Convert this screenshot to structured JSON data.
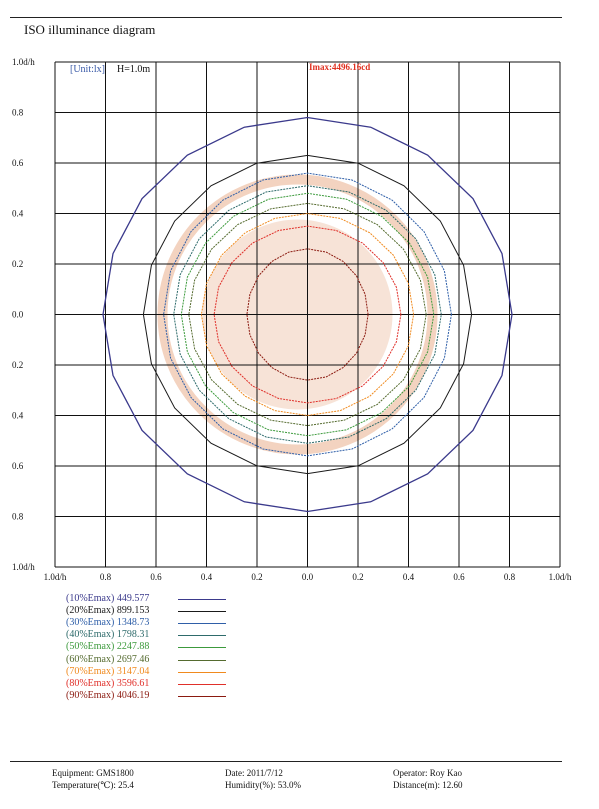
{
  "title": "ISO illuminance diagram",
  "header_left": {
    "unit": "[Unit:lx]",
    "height": "H=1.0m"
  },
  "imax": "Imax:4496.16cd",
  "colors": {
    "grid": "#111111",
    "unit": "#3b5ba8",
    "imax": "#e03020",
    "watermark": "#f0c8b0",
    "levels": [
      "#3b3a8c",
      "#1a1a1a",
      "#2f5fa8",
      "#2e6b6b",
      "#3c9a3c",
      "#556b2f",
      "#f08a1e",
      "#e0302a",
      "#8b1a10"
    ]
  },
  "chart_data": {
    "type": "contour",
    "title": "ISO illuminance diagram",
    "unit": "lx",
    "mounting_height": "H=1.0m",
    "imax": "4496.16cd",
    "x_ticks": [
      "1.0d/h",
      "0.8",
      "0.6",
      "0.4",
      "0.2",
      "0.0",
      "0.2",
      "0.4",
      "0.6",
      "0.8",
      "1.0d/h"
    ],
    "y_ticks": [
      "1.0d/h",
      "0.8",
      "0.6",
      "0.4",
      "0.2",
      "0.0",
      "0.2",
      "0.4",
      "0.6",
      "0.8",
      "1.0d/h"
    ],
    "x_range": [
      -1.0,
      1.0
    ],
    "y_range": [
      -1.0,
      1.0
    ],
    "grid": true,
    "contours": [
      {
        "label": "(10%Emax)",
        "value": "449.577",
        "radius_x": 0.81,
        "radius_y": 0.78
      },
      {
        "label": "(20%Emax)",
        "value": "899.153",
        "radius_x": 0.65,
        "radius_y": 0.63
      },
      {
        "label": "(30%Emax)",
        "value": "1348.73",
        "radius_x": 0.57,
        "radius_y": 0.56
      },
      {
        "label": "(40%Emax)",
        "value": "1798.31",
        "radius_x": 0.53,
        "radius_y": 0.51
      },
      {
        "label": "(50%Emax)",
        "value": "2247.88",
        "radius_x": 0.5,
        "radius_y": 0.48
      },
      {
        "label": "(60%Emax)",
        "value": "2697.46",
        "radius_x": 0.47,
        "radius_y": 0.44
      },
      {
        "label": "(70%Emax)",
        "value": "3147.04",
        "radius_x": 0.42,
        "radius_y": 0.4
      },
      {
        "label": "(80%Emax)",
        "value": "3596.61",
        "radius_x": 0.37,
        "radius_y": 0.35
      },
      {
        "label": "(90%Emax)",
        "value": "4046.19",
        "radius_x": 0.24,
        "radius_y": 0.26
      }
    ]
  },
  "footer": {
    "equipment": "Equipment: GMS1800",
    "temperature": "Temperature(℃): 25.4",
    "date": "Date: 2011/7/12",
    "humidity": "Humidity(%): 53.0%",
    "operator": "Operator: Roy Kao",
    "distance": "Distance(m): 12.60"
  }
}
